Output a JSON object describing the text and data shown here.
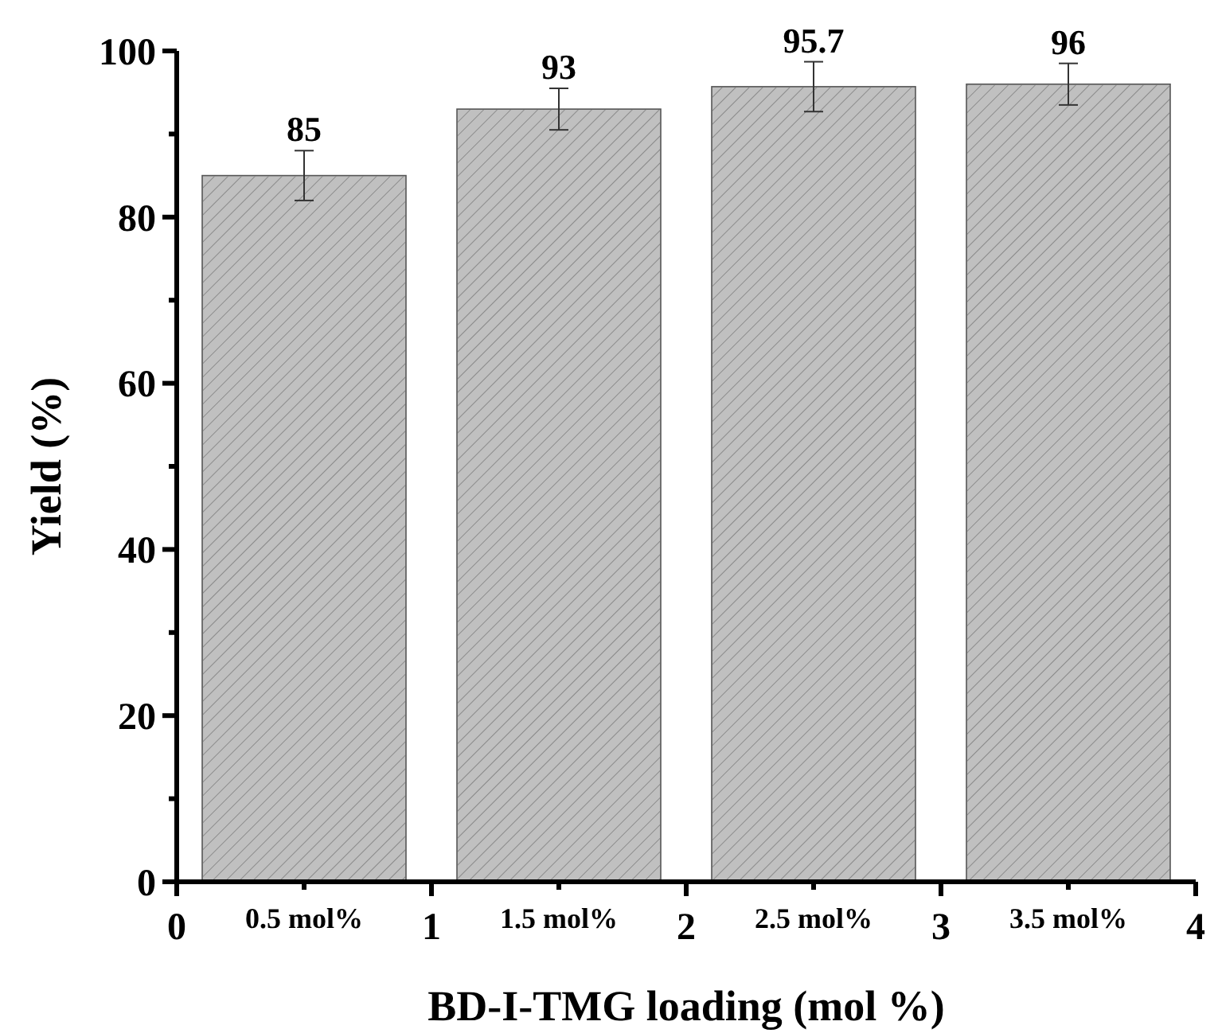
{
  "chart_data": {
    "type": "bar",
    "xlabel": "BD-I-TMG loading (mol %)",
    "ylabel": "Yield (%)",
    "x": [
      0.5,
      1.5,
      2.5,
      3.5
    ],
    "values": [
      85,
      93,
      95.7,
      96
    ],
    "errors": [
      3,
      2.5,
      3,
      2.5
    ],
    "color": "#c0c0c0",
    "data_labels": true,
    "xlim": [
      0,
      4
    ],
    "xticks": [
      0,
      {
        "value": 0.5,
        "label": null
      },
      1,
      {
        "value": 1.5,
        "label": null
      },
      2,
      {
        "value": 2.5,
        "label": null
      },
      3,
      {
        "value": 3.5,
        "label": null
      },
      4
    ],
    "ylim": [
      0,
      100
    ],
    "yticks": [
      0,
      {
        "value": 10,
        "label": null
      },
      20,
      {
        "value": 30,
        "label": null
      },
      40,
      {
        "value": 50,
        "label": null
      },
      60,
      {
        "value": 70,
        "label": null
      },
      80,
      {
        "value": 90,
        "label": null
      },
      100
    ],
    "annotations": [
      {
        "text": "0.5 mol%",
        "x": 0.5,
        "y": 0
      },
      {
        "text": "1.5 mol%",
        "x": 1.5,
        "y": 0
      },
      {
        "text": "2.5 mol%",
        "x": 2.5,
        "y": 0
      },
      {
        "text": "3.5 mol%",
        "x": 3.5,
        "y": 0
      }
    ],
    "grid": false
  }
}
